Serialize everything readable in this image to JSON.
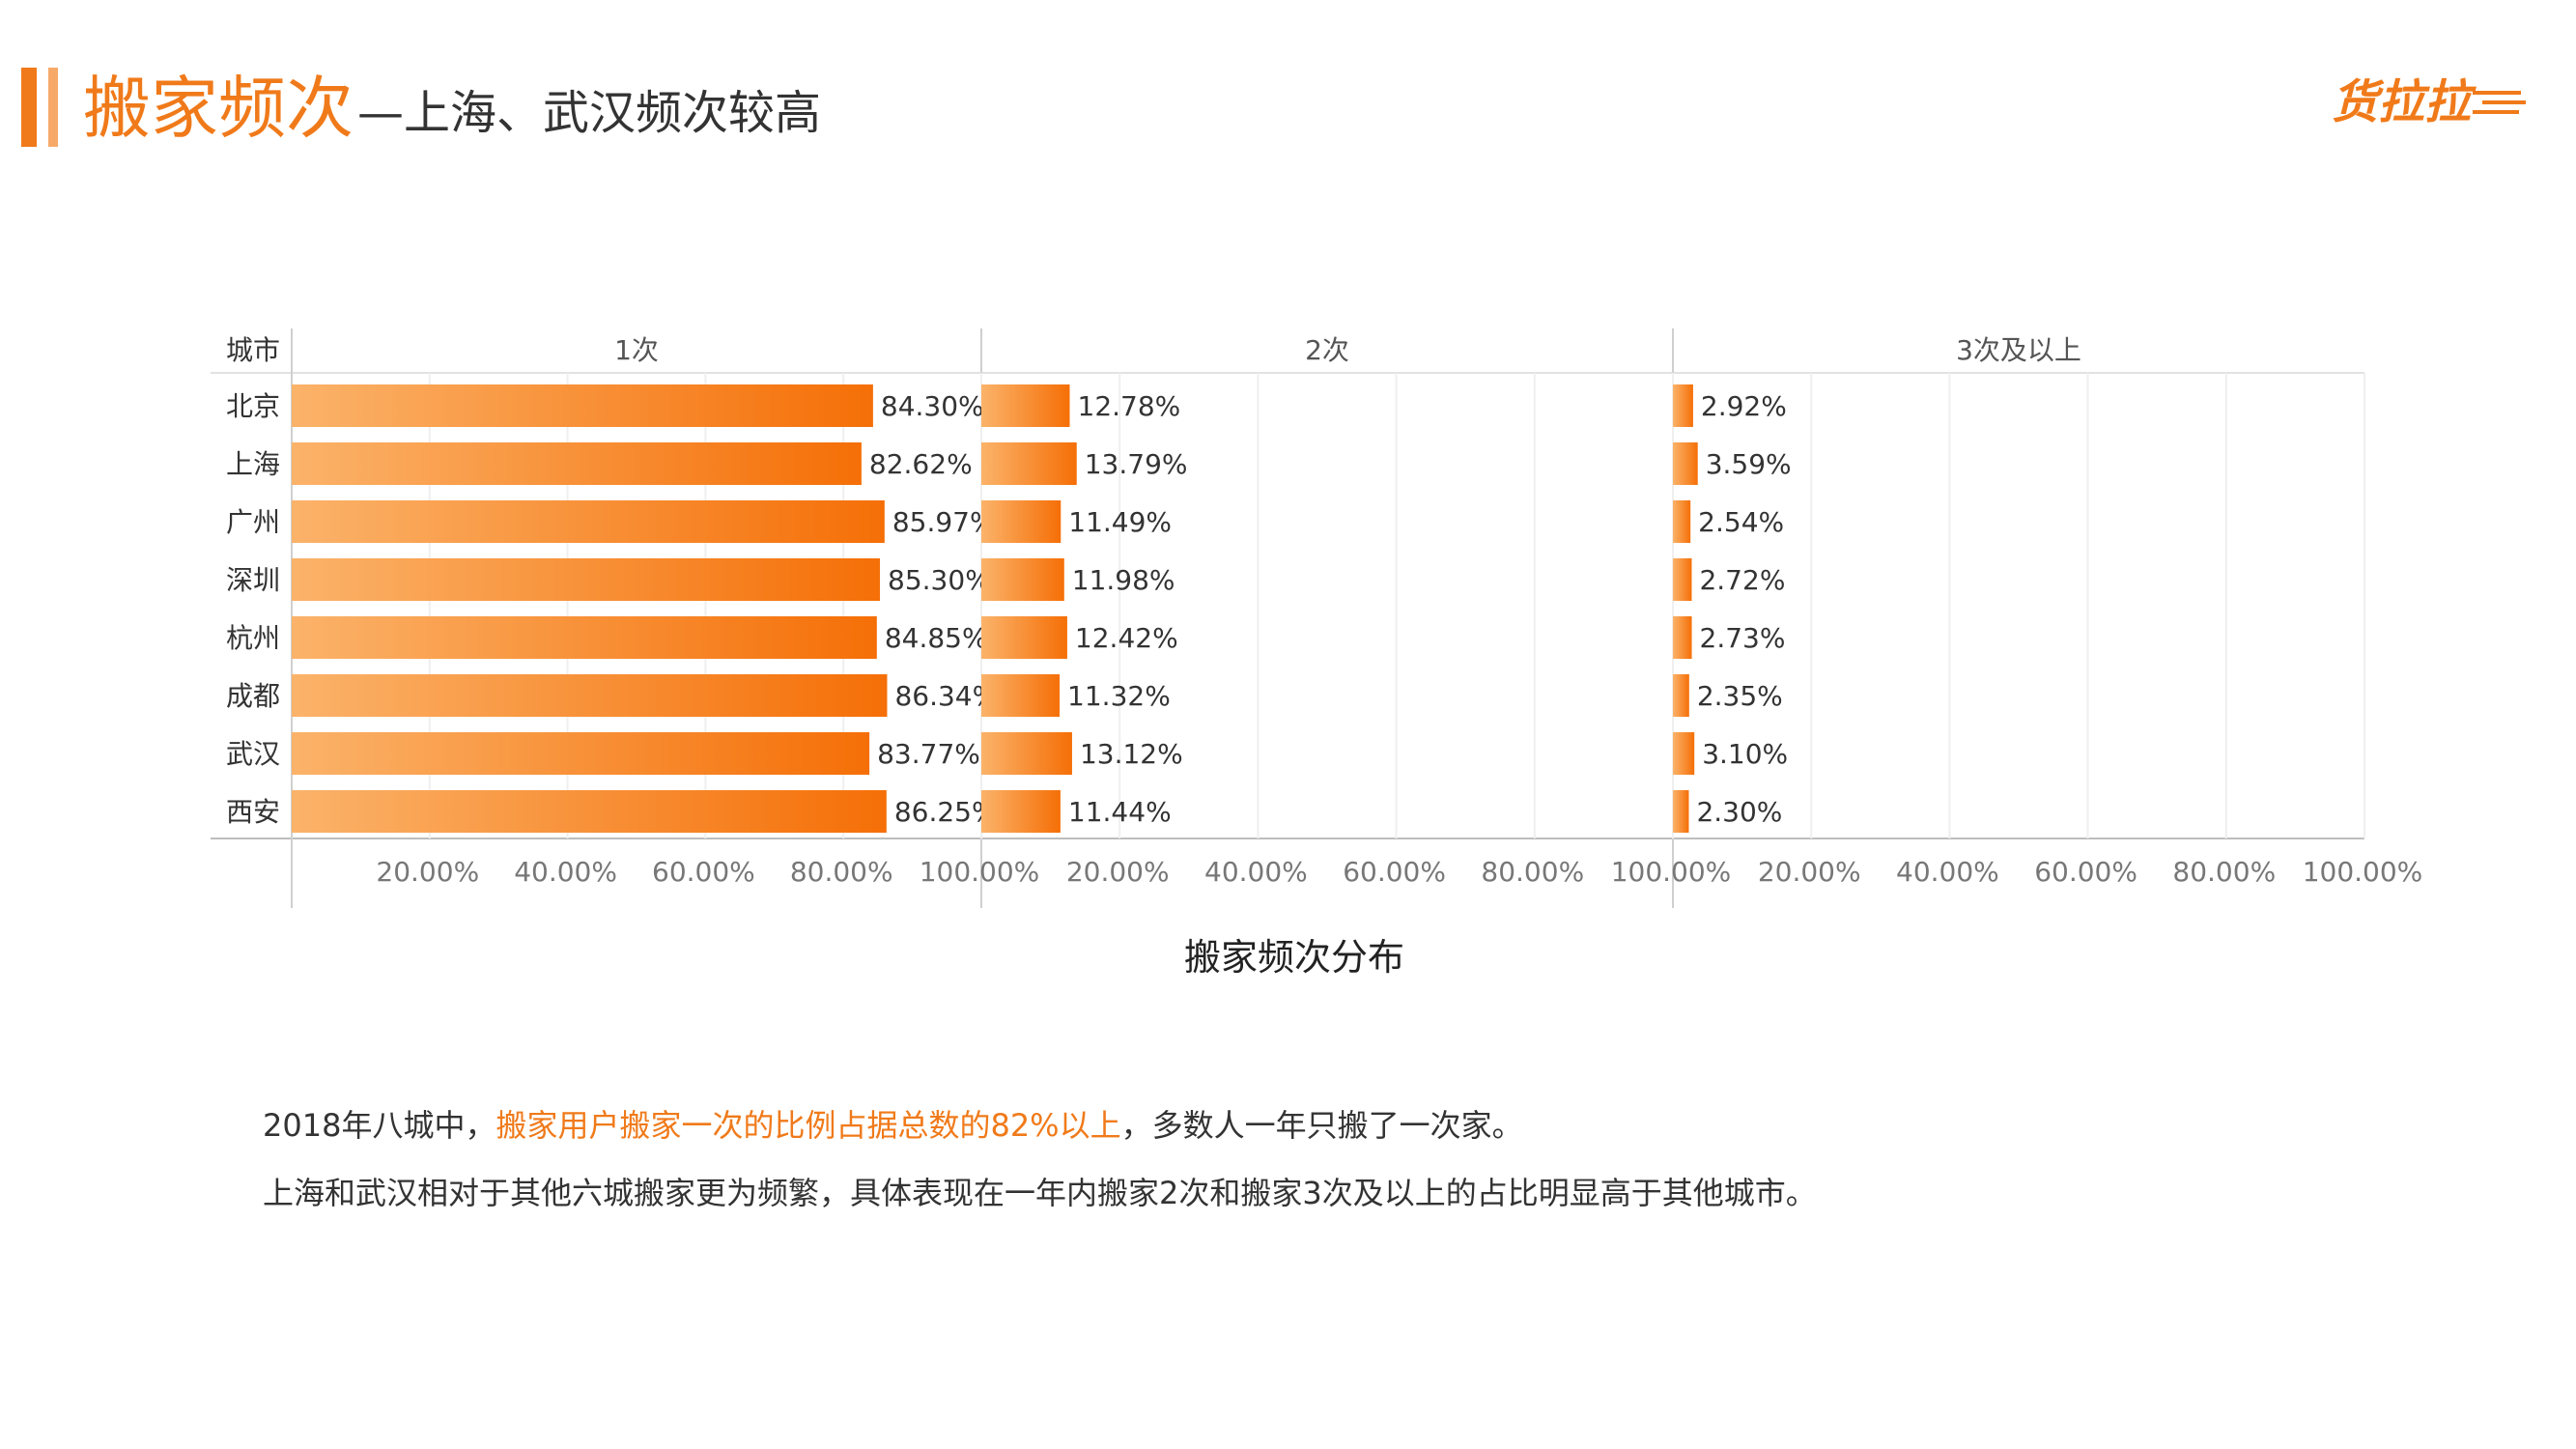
{
  "header": {
    "title": "搬家频次",
    "subtitle": "—上海、武汉频次较高",
    "logo_text": "货拉拉",
    "accent_color": "#f07a1a"
  },
  "chart_data": {
    "type": "bar",
    "title": "搬家频次分布",
    "row_header": "城市",
    "categories": [
      "北京",
      "上海",
      "广州",
      "深圳",
      "杭州",
      "成都",
      "武汉",
      "西安"
    ],
    "panels": [
      {
        "name": "1次",
        "values": [
          84.3,
          82.62,
          85.97,
          85.3,
          84.85,
          86.34,
          83.77,
          86.25
        ],
        "labels": [
          "84.30%",
          "82.62%",
          "85.97%",
          "85.30%",
          "84.85%",
          "86.34%",
          "83.77%",
          "86.25%"
        ]
      },
      {
        "name": "2次",
        "values": [
          12.78,
          13.79,
          11.49,
          11.98,
          12.42,
          11.32,
          13.12,
          11.44
        ],
        "labels": [
          "12.78%",
          "13.79%",
          "11.49%",
          "11.98%",
          "12.42%",
          "11.32%",
          "13.12%",
          "11.44%"
        ]
      },
      {
        "name": "3次及以上",
        "values": [
          2.92,
          3.59,
          2.54,
          2.72,
          2.73,
          2.35,
          3.1,
          2.3
        ],
        "labels": [
          "2.92%",
          "3.59%",
          "2.54%",
          "2.72%",
          "2.73%",
          "2.35%",
          "3.10%",
          "2.30%"
        ]
      }
    ],
    "xlim": [
      0,
      100
    ],
    "xticks": [
      20,
      40,
      60,
      80,
      100
    ],
    "xtick_labels": [
      "20.00%",
      "40.00%",
      "60.00%",
      "80.00%",
      "100.00%"
    ],
    "grid": true,
    "bar_color_light": "#fbb36a",
    "bar_color_dark": "#f56f07"
  },
  "description": {
    "line1_prefix": "2018年八城中，",
    "line1_highlight": "搬家用户搬家一次的比例占据总数的82%以上",
    "line1_suffix": "，多数人一年只搬了一次家。",
    "line2": "上海和武汉相对于其他六城搬家更为频繁，具体表现在一年内搬家2次和搬家3次及以上的占比明显高于其他城市。"
  }
}
